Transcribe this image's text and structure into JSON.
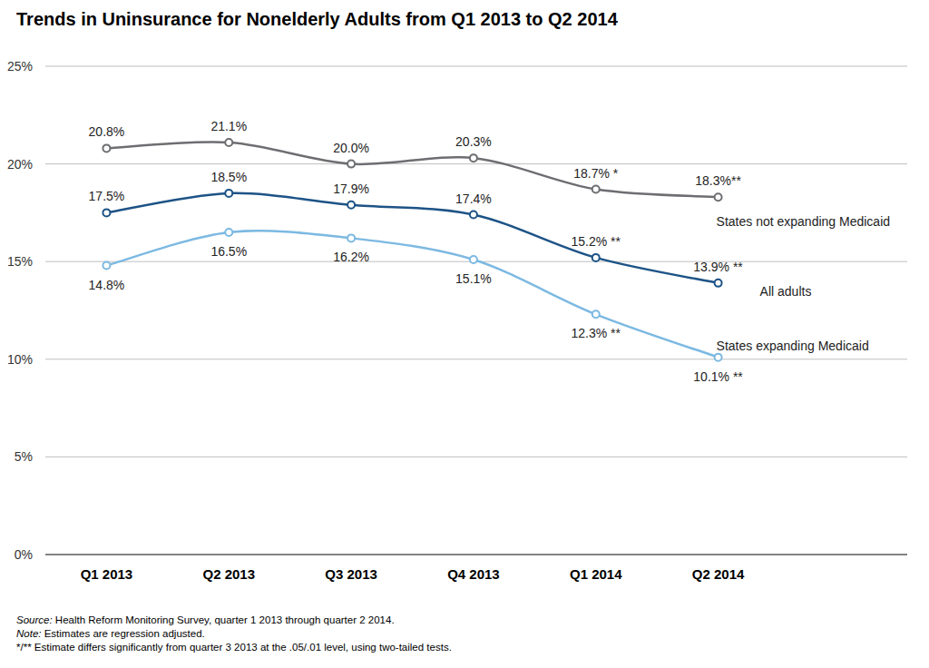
{
  "chart_data": {
    "type": "line",
    "title": "Trends in Uninsurance for Nonelderly Adults from Q1 2013 to Q2 2014",
    "categories": [
      "Q1 2013",
      "Q2 2013",
      "Q3 2013",
      "Q4 2013",
      "Q1 2014",
      "Q2 2014"
    ],
    "series": [
      {
        "name": "States not expanding Medicaid",
        "color": "#6d6e71",
        "values": [
          20.8,
          21.1,
          20.0,
          20.3,
          18.7,
          18.3
        ],
        "value_labels": [
          "20.8%",
          "21.1%",
          "20.0%",
          "20.3%",
          "18.7% *",
          "18.3%**"
        ]
      },
      {
        "name": "All adults",
        "color": "#1d5386",
        "values": [
          17.5,
          18.5,
          17.9,
          17.4,
          15.2,
          13.9
        ],
        "value_labels": [
          "17.5%",
          "18.5%",
          "17.9%",
          "17.4%",
          "15.2% **",
          "13.9% **"
        ]
      },
      {
        "name": "States expanding Medicaid",
        "color": "#7cb9e2",
        "values": [
          14.8,
          16.5,
          16.2,
          15.1,
          12.3,
          10.1
        ],
        "value_labels": [
          "14.8%",
          "16.5%",
          "16.2%",
          "15.1%",
          "12.3% **",
          "10.1% **"
        ]
      }
    ],
    "ylim": [
      0,
      25
    ],
    "yticks": [
      {
        "value": 0,
        "label": "0%"
      },
      {
        "value": 5,
        "label": "5%"
      },
      {
        "value": 10,
        "label": "10%"
      },
      {
        "value": 15,
        "label": "15%"
      },
      {
        "value": 20,
        "label": "20%"
      },
      {
        "value": 25,
        "label": "25%"
      }
    ],
    "grid": true,
    "data_labels": true,
    "marker": "circle",
    "annotations": [
      "Source: Health Reform Monitoring Survey, quarter 1 2013 through quarter 2 2014.",
      "Note: Estimates are regression adjusted.",
      "*/** Estimate differs significantly from quarter 3 2013 at the .05/.01 level, using two-tailed tests."
    ]
  }
}
